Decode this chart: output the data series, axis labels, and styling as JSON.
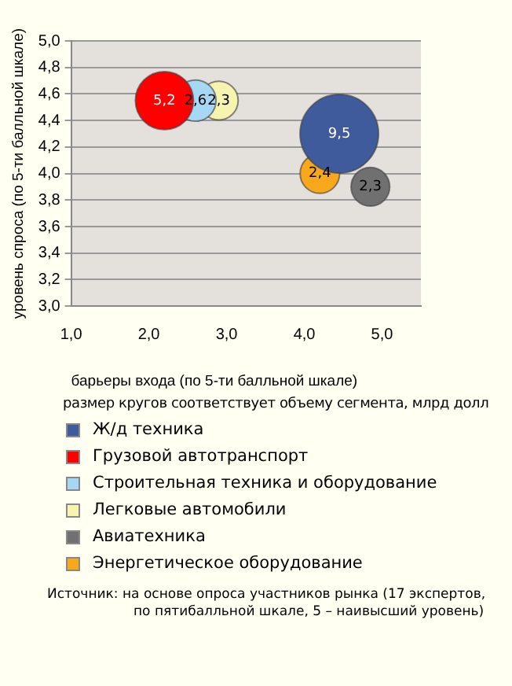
{
  "chart_data": {
    "type": "bubble",
    "xlabel": "барьеры входа (по 5-ти балльной шкале)",
    "ylabel": "уровень спроса (по 5-ти балльной шкале)",
    "xlim": [
      1,
      5.5
    ],
    "xticks": [
      {
        "value": 1,
        "label": "1,0"
      },
      {
        "value": 2,
        "label": "2,0"
      },
      {
        "value": 3,
        "label": "3,0"
      },
      {
        "value": 4,
        "label": "4,0"
      },
      {
        "value": 5,
        "label": "5,0"
      }
    ],
    "ylim": [
      3,
      5
    ],
    "yticks": [
      {
        "value": 3,
        "label": "3,0"
      },
      {
        "value": 3.2,
        "label": "3,2"
      },
      {
        "value": 3.4,
        "label": "3,4"
      },
      {
        "value": 3.6,
        "label": "3,6"
      },
      {
        "value": 3.8,
        "label": "3,8"
      },
      {
        "value": 4,
        "label": "4,0"
      },
      {
        "value": 4.2,
        "label": "4,2"
      },
      {
        "value": 4.4,
        "label": "4,4"
      },
      {
        "value": 4.6,
        "label": "4,6"
      },
      {
        "value": 4.8,
        "label": "4,8"
      },
      {
        "value": 5,
        "label": "5,0"
      }
    ],
    "grid": "y",
    "legend": "bottom",
    "series": [
      {
        "name": "Ж/д техника",
        "color": "#3f5b9b",
        "x": [
          4.45
        ],
        "values": [
          4.3
        ],
        "sizes": [
          9.5
        ],
        "value_labels": [
          "9,5"
        ]
      },
      {
        "name": "Грузовой автотранспорт",
        "color": "#ff0000",
        "x": [
          2.2
        ],
        "values": [
          4.55
        ],
        "sizes": [
          5.2
        ],
        "value_labels": [
          "5,2"
        ]
      },
      {
        "name": "Строительная техника и оборудование",
        "color": "#a6d8f5",
        "x": [
          2.6
        ],
        "values": [
          4.55
        ],
        "sizes": [
          2.6
        ],
        "value_labels": [
          "2,6"
        ]
      },
      {
        "name": "Легковые автомобили",
        "color": "#f7f4b0",
        "x": [
          2.9
        ],
        "values": [
          4.55
        ],
        "sizes": [
          2.3
        ],
        "value_labels": [
          "2,3"
        ]
      },
      {
        "name": "Авиатехника",
        "color": "#707070",
        "x": [
          4.85
        ],
        "values": [
          3.9
        ],
        "sizes": [
          2.3
        ],
        "value_labels": [
          "2,3"
        ]
      },
      {
        "name": "Энергетическое оборудование",
        "color": "#f9a81b",
        "x": [
          4.2
        ],
        "values": [
          4.0
        ],
        "sizes": [
          2.4
        ],
        "value_labels": [
          "2,4"
        ]
      }
    ],
    "annotations": [
      "размер кругов соответствует объему сегмента, млрд долл",
      "Источник: на основе опроса участников рынка (17 экспертов, по пятибалльной шкале, 5 – наивысший уровень)"
    ]
  }
}
